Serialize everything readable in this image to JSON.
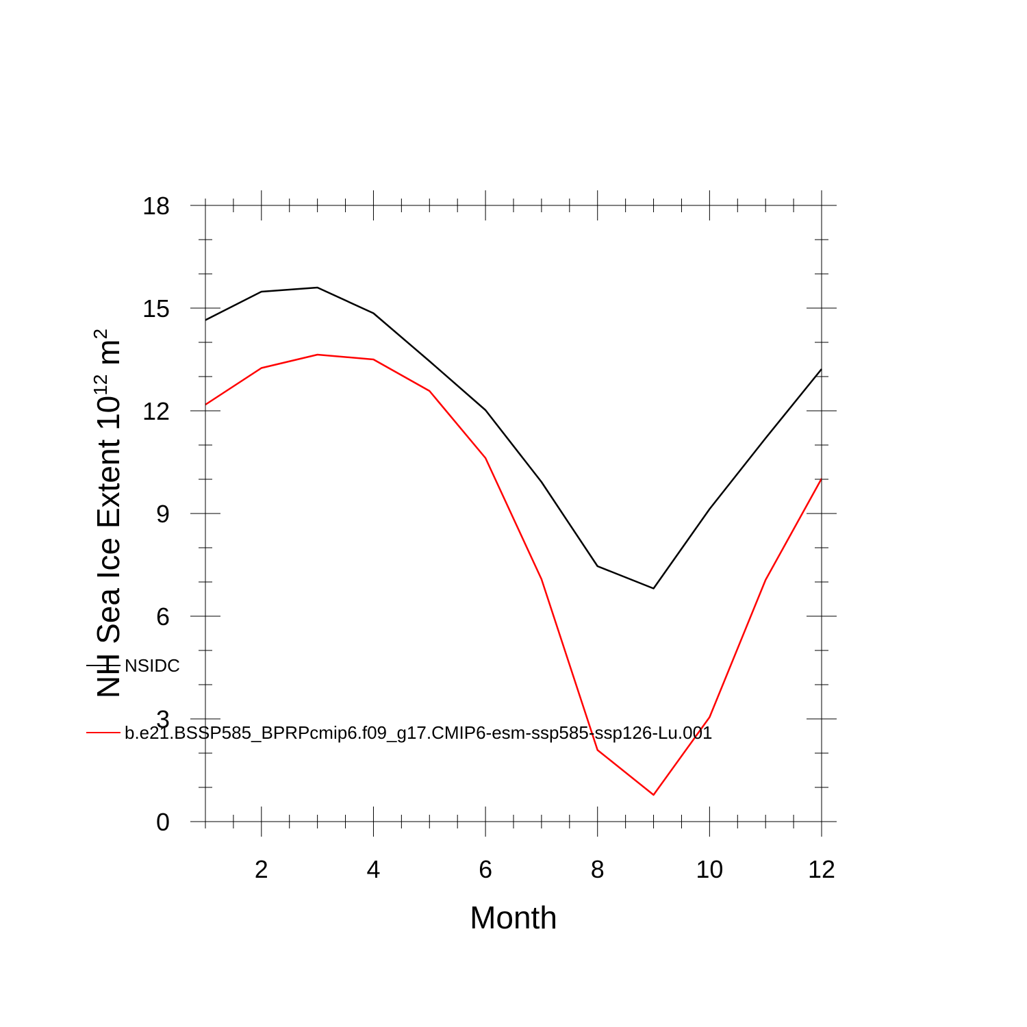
{
  "chart_data": {
    "type": "line",
    "xlabel": "Month",
    "ylabel": {
      "prefix": "NH Sea Ice Extent 10",
      "exponent1": "12",
      "unit": " m",
      "exponent2": "2"
    },
    "xlim": [
      1,
      12
    ],
    "ylim": [
      0,
      18
    ],
    "xticks": [
      2,
      4,
      6,
      8,
      10,
      12
    ],
    "yticks": [
      0,
      3,
      6,
      9,
      12,
      15,
      18
    ],
    "x": [
      1,
      2,
      3,
      4,
      5,
      6,
      7,
      8,
      9,
      10,
      11,
      12
    ],
    "series": [
      {
        "name": "NSIDC",
        "color": "#000000",
        "values": [
          14.65,
          15.48,
          15.6,
          14.85,
          13.45,
          12.02,
          9.92,
          7.46,
          6.81,
          9.13,
          11.2,
          13.22
        ]
      },
      {
        "name": "b.e21.BSSP585_BPRPcmip6.f09_g17.CMIP6-esm-ssp585-ssp126-Lu.001",
        "color": "#ff0000",
        "values": [
          12.18,
          13.25,
          13.64,
          13.5,
          12.58,
          10.62,
          7.08,
          2.09,
          0.78,
          3.05,
          7.06,
          10.02
        ]
      }
    ],
    "legend": "overlapping-left",
    "grid": false
  }
}
